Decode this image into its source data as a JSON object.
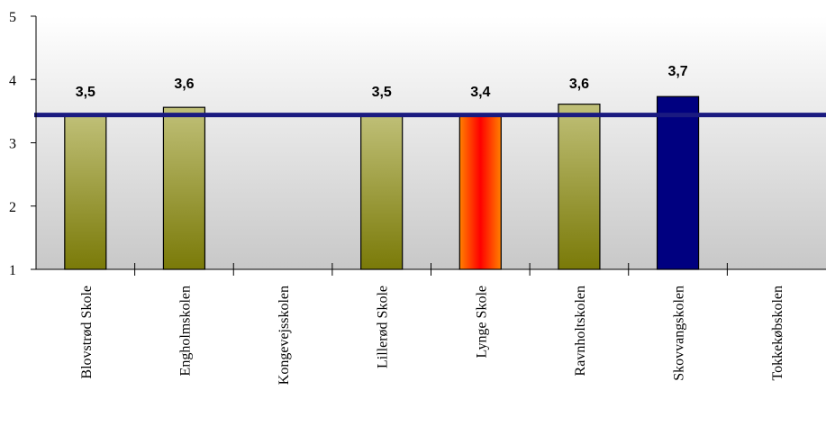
{
  "chart_data": {
    "type": "bar",
    "categories": [
      "Blovstrød Skole",
      "Engholmskolen",
      "Kongevejsskolen",
      "Lillerød Skole",
      "Lynge Skole",
      "Ravnholtskolen",
      "Skovvangskolen",
      "Tokkekøbskolen"
    ],
    "values": [
      3.45,
      3.56,
      null,
      3.46,
      3.43,
      3.61,
      3.73,
      null
    ],
    "data_labels": [
      "3,5",
      "3,6",
      "",
      "3,5",
      "3,4",
      "3,6",
      "3,7",
      ""
    ],
    "y_ticks": [
      "1",
      "2",
      "3",
      "4",
      "5"
    ],
    "ylim": [
      1,
      5
    ],
    "reference_line": 3.44,
    "highlight_category": "Lynge Skole",
    "colors": {
      "bar_top": "#C0C078",
      "bar_bottom": "#7A7A08",
      "highlight_edge": "#FF8000",
      "highlight_center": "#FF0000",
      "special_bar": "#000080",
      "reference_line": "#1A1A80",
      "plot_bg_top": "#FFFFFF",
      "plot_bg_bottom": "#C8C8C8"
    },
    "title": "",
    "xlabel": "",
    "ylabel": "",
    "grid": false,
    "legend": "none"
  }
}
